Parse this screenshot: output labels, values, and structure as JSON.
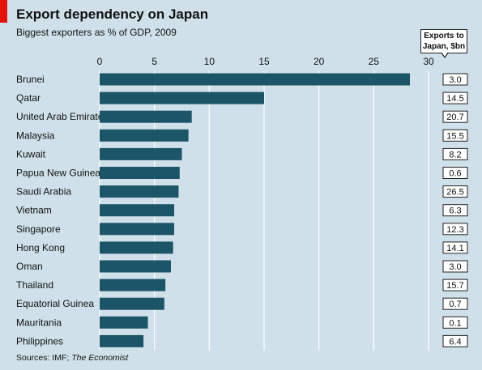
{
  "header": {
    "title": "Export dependency on Japan",
    "subtitle": "Biggest exporters as % of GDP, 2009",
    "side_header_line1": "Exports to",
    "side_header_line2": "Japan, $bn"
  },
  "footer": {
    "source_prefix": "Sources: IMF; ",
    "source_italic": "The Economist"
  },
  "colors": {
    "background": "#cfe0ea",
    "bar": "#1c5568",
    "accent": "#e3120b",
    "grid": "#ffffff"
  },
  "chart_data": {
    "type": "bar",
    "orientation": "horizontal",
    "title": "Export dependency on Japan",
    "subtitle": "Biggest exporters as % of GDP, 2009",
    "xlim": [
      0,
      30
    ],
    "xticks": [
      0,
      5,
      10,
      15,
      20,
      25,
      30
    ],
    "grid": true,
    "categories": [
      "Brunei",
      "Qatar",
      "United Arab Emirates",
      "Malaysia",
      "Kuwait",
      "Papua New Guinea",
      "Saudi Arabia",
      "Vietnam",
      "Singapore",
      "Hong Kong",
      "Oman",
      "Thailand",
      "Equatorial Guinea",
      "Mauritania",
      "Philippines"
    ],
    "values": [
      28.3,
      15.0,
      8.4,
      8.1,
      7.5,
      7.3,
      7.2,
      6.8,
      6.8,
      6.7,
      6.5,
      6.0,
      5.9,
      4.4,
      4.0
    ],
    "side_labels": [
      "3.0",
      "14.5",
      "20.7",
      "15.5",
      "8.2",
      "0.6",
      "26.5",
      "6.3",
      "12.3",
      "14.1",
      "3.0",
      "15.7",
      "0.7",
      "0.1",
      "6.4"
    ]
  }
}
